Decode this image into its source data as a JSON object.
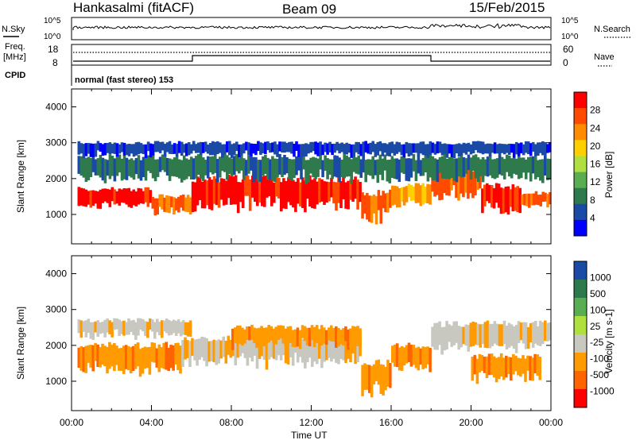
{
  "header": {
    "station": "Hankasalmi (fitACF)",
    "beam": "Beam 09",
    "date": "15/Feb/2015"
  },
  "top_panel": {
    "nsky_label": "N.Sky",
    "nsearch_label": "N.Search",
    "y_ticks": [
      "10^5",
      "10^0"
    ],
    "freq_label_1": "Freq.",
    "freq_label_2": "[MHz]",
    "freq_ticks": [
      "18",
      "8"
    ],
    "nave_label": "Nave",
    "nave_ticks": [
      "60",
      "0"
    ],
    "cpid_label": "CPID",
    "cpid_text": "normal (fast stereo) 153"
  },
  "axes": {
    "ylabel": "Slant Range [km]",
    "y_ticks": [
      "4000",
      "3000",
      "2000",
      "1000"
    ],
    "xlabel": "Time UT",
    "x_ticks": [
      "00:00",
      "04:00",
      "08:00",
      "12:00",
      "16:00",
      "20:00",
      "00:00"
    ]
  },
  "chart_data": [
    {
      "type": "heatmap",
      "name": "power",
      "colorbar_label": "Power [dB]",
      "colorbar_ticks": [
        "28",
        "24",
        "20",
        "16",
        "12",
        "8",
        "4"
      ],
      "colors": [
        "#ff0000",
        "#ff4a00",
        "#ff8c00",
        "#ffd000",
        "#b0e040",
        "#5aae52",
        "#2e7a4c",
        "#1a4aa6",
        "#0000ff"
      ],
      "x_range_hours": [
        0,
        24
      ],
      "y_range_km": [
        180,
        4500
      ],
      "bands": [
        {
          "hours": [
            0.3,
            4.0
          ],
          "range_km": [
            1150,
            1700
          ],
          "level": 0
        },
        {
          "hours": [
            4.0,
            6.0
          ],
          "range_km": [
            1000,
            1500
          ],
          "level": 1
        },
        {
          "hours": [
            6.0,
            14.5
          ],
          "range_km": [
            1100,
            2000
          ],
          "level": 0
        },
        {
          "hours": [
            14.5,
            16.0
          ],
          "range_km": [
            800,
            1600
          ],
          "level": 1
        },
        {
          "hours": [
            16.0,
            18.0
          ],
          "range_km": [
            1200,
            1800
          ],
          "level": 2
        },
        {
          "hours": [
            18.0,
            20.5
          ],
          "range_km": [
            1400,
            2300
          ],
          "level": 1
        },
        {
          "hours": [
            20.5,
            22.5
          ],
          "range_km": [
            1000,
            1800
          ],
          "level": 0
        },
        {
          "hours": [
            22.5,
            24.0
          ],
          "range_km": [
            1200,
            1600
          ],
          "level": 1
        },
        {
          "hours": [
            0.3,
            24.0
          ],
          "range_km": [
            1900,
            2600
          ],
          "level": 6
        },
        {
          "hours": [
            0.3,
            24.0
          ],
          "range_km": [
            2600,
            3000
          ],
          "level": 7
        }
      ]
    },
    {
      "type": "heatmap",
      "name": "velocity",
      "colorbar_label": "Velocity [m s-1]",
      "colorbar_ticks": [
        "1000",
        "500",
        "100",
        "25",
        "-25",
        "-100",
        "-500",
        "-1000"
      ],
      "colors": [
        "#1a4aa6",
        "#2e7a4c",
        "#5aae52",
        "#b0e040",
        "#c8c8c0",
        "#ff9a00",
        "#ff6400",
        "#ff0000"
      ],
      "x_range_hours": [
        0,
        24
      ],
      "y_range_km": [
        180,
        4500
      ],
      "bands": [
        {
          "hours": [
            0.3,
            5.5
          ],
          "range_km": [
            1200,
            2000
          ],
          "level": 5
        },
        {
          "hours": [
            5.5,
            14.5
          ],
          "range_km": [
            1400,
            2200
          ],
          "level": 4
        },
        {
          "hours": [
            8.0,
            14.5
          ],
          "range_km": [
            1900,
            2500
          ],
          "level": 5
        },
        {
          "hours": [
            14.5,
            16.0
          ],
          "range_km": [
            600,
            1500
          ],
          "level": 5
        },
        {
          "hours": [
            16.0,
            18.0
          ],
          "range_km": [
            1300,
            2000
          ],
          "level": 5
        },
        {
          "hours": [
            18.0,
            24.0
          ],
          "range_km": [
            1800,
            2600
          ],
          "level": 4
        },
        {
          "hours": [
            20.0,
            23.5
          ],
          "range_km": [
            1000,
            1700
          ],
          "level": 5
        },
        {
          "hours": [
            0.3,
            6.0
          ],
          "range_km": [
            2200,
            2700
          ],
          "level": 4
        }
      ]
    }
  ]
}
